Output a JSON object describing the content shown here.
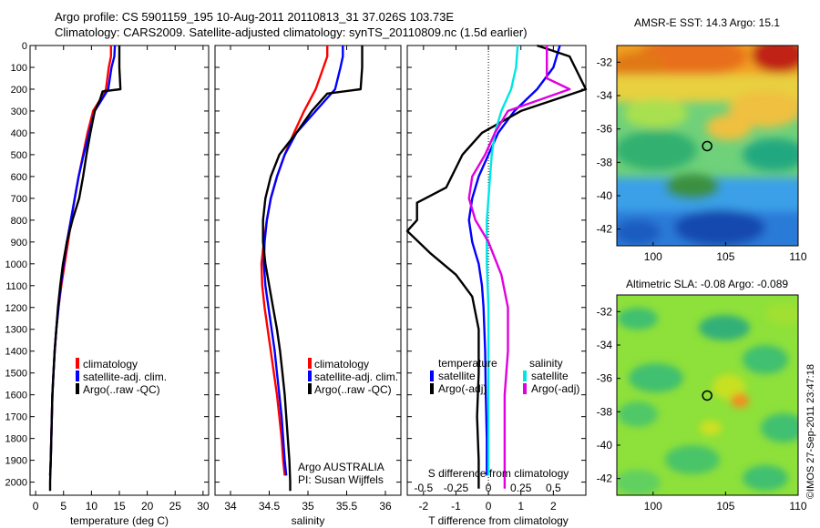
{
  "header": {
    "line1": "Argo profile: CS 5901159_195 10-Aug-2011 20110813_31 37.026S 103.73E",
    "line2": "Climatology: CARS2009. Satellite-adjusted climatology: synTS_20110809.nc (1.5d earlier)"
  },
  "credit": "©IMOS 27-Sep-2011 23:47:18",
  "colors": {
    "climatology": "#ff0000",
    "satellite": "#0000ff",
    "argo": "#000000",
    "cyan": "#00e5e5",
    "magenta": "#e000e0"
  },
  "chart_data": [
    {
      "type": "line",
      "panel": "temperature",
      "xlabel": "temperature (deg C)",
      "ylabel": "",
      "xlim": [
        -1,
        31
      ],
      "ylim": [
        2060,
        0
      ],
      "xticks": [
        0,
        5,
        10,
        15,
        20,
        25,
        30
      ],
      "yticks": [
        0,
        100,
        200,
        300,
        400,
        500,
        600,
        700,
        800,
        900,
        1000,
        1100,
        1200,
        1300,
        1400,
        1500,
        1600,
        1700,
        1800,
        1900,
        2000
      ],
      "legend": [
        "climatology",
        "satellite-adj. clim.",
        "Argo(..raw -QC)"
      ],
      "series": [
        {
          "name": "climatology",
          "color": "red",
          "points": [
            [
              13.5,
              0
            ],
            [
              13.5,
              50
            ],
            [
              13.1,
              100
            ],
            [
              12.6,
              200
            ],
            [
              11.5,
              250
            ],
            [
              10.3,
              300
            ],
            [
              9.3,
              400
            ],
            [
              8.5,
              500
            ],
            [
              7.7,
              600
            ],
            [
              7,
              700
            ],
            [
              6.4,
              800
            ],
            [
              5.8,
              900
            ],
            [
              5.2,
              1000
            ],
            [
              4.6,
              1100
            ],
            [
              4.1,
              1200
            ],
            [
              3.7,
              1300
            ],
            [
              3.4,
              1400
            ],
            [
              3.2,
              1500
            ],
            [
              3,
              1600
            ],
            [
              2.9,
              1700
            ],
            [
              2.8,
              1800
            ],
            [
              2.7,
              1900
            ],
            [
              2.6,
              1970
            ]
          ]
        },
        {
          "name": "satellite-adj. clim.",
          "color": "blue",
          "points": [
            [
              14.2,
              0
            ],
            [
              14.1,
              50
            ],
            [
              13.6,
              100
            ],
            [
              13,
              200
            ],
            [
              11.8,
              250
            ],
            [
              10.6,
              300
            ],
            [
              9.6,
              400
            ],
            [
              8.6,
              500
            ],
            [
              7.7,
              600
            ],
            [
              7,
              700
            ],
            [
              6.3,
              800
            ],
            [
              5.6,
              900
            ],
            [
              5,
              1000
            ],
            [
              4.5,
              1100
            ],
            [
              4.1,
              1200
            ],
            [
              3.7,
              1300
            ],
            [
              3.4,
              1400
            ],
            [
              3.2,
              1500
            ],
            [
              3,
              1600
            ],
            [
              2.9,
              1700
            ],
            [
              2.8,
              1800
            ],
            [
              2.7,
              1900
            ],
            [
              2.6,
              1970
            ]
          ]
        },
        {
          "name": "Argo(..raw -QC)",
          "color": "black",
          "points": [
            [
              15,
              0
            ],
            [
              15,
              100
            ],
            [
              15.2,
              200
            ],
            [
              12,
              210
            ],
            [
              11.5,
              250
            ],
            [
              10.6,
              300
            ],
            [
              9.8,
              400
            ],
            [
              9.1,
              500
            ],
            [
              8.5,
              600
            ],
            [
              7.8,
              700
            ],
            [
              6.6,
              800
            ],
            [
              5.6,
              900
            ],
            [
              4.9,
              1000
            ],
            [
              4.4,
              1100
            ],
            [
              4,
              1200
            ],
            [
              3.7,
              1300
            ],
            [
              3.4,
              1400
            ],
            [
              3.2,
              1500
            ],
            [
              3,
              1600
            ],
            [
              2.9,
              1700
            ],
            [
              2.8,
              1800
            ],
            [
              2.7,
              1900
            ],
            [
              2.6,
              2000
            ],
            [
              2.6,
              2040
            ]
          ]
        }
      ]
    },
    {
      "type": "line",
      "panel": "salinity",
      "xlabel": "salinity",
      "xlim": [
        33.8,
        36.2
      ],
      "ylim": [
        2060,
        0
      ],
      "xticks": [
        34,
        34.5,
        35,
        35.5,
        36
      ],
      "legend": [
        "climatology",
        "satellite-adj. clim.",
        "Argo(..raw -QC)"
      ],
      "annotation": [
        "Argo AUSTRALIA",
        "PI: Susan Wijffels"
      ],
      "series": [
        {
          "name": "climatology",
          "color": "red",
          "points": [
            [
              35.25,
              0
            ],
            [
              35.25,
              50
            ],
            [
              35.2,
              100
            ],
            [
              35.1,
              200
            ],
            [
              34.95,
              300
            ],
            [
              34.82,
              400
            ],
            [
              34.7,
              500
            ],
            [
              34.6,
              600
            ],
            [
              34.52,
              700
            ],
            [
              34.47,
              800
            ],
            [
              34.43,
              900
            ],
            [
              34.4,
              1000
            ],
            [
              34.41,
              1100
            ],
            [
              34.44,
              1200
            ],
            [
              34.48,
              1300
            ],
            [
              34.52,
              1400
            ],
            [
              34.56,
              1500
            ],
            [
              34.6,
              1600
            ],
            [
              34.63,
              1700
            ],
            [
              34.66,
              1800
            ],
            [
              34.68,
              1900
            ],
            [
              34.7,
              1970
            ]
          ]
        },
        {
          "name": "satellite-adj. clim.",
          "color": "blue",
          "points": [
            [
              35.45,
              0
            ],
            [
              35.45,
              50
            ],
            [
              35.42,
              100
            ],
            [
              35.35,
              200
            ],
            [
              35.1,
              300
            ],
            [
              34.85,
              400
            ],
            [
              34.7,
              500
            ],
            [
              34.6,
              600
            ],
            [
              34.52,
              700
            ],
            [
              34.47,
              800
            ],
            [
              34.44,
              900
            ],
            [
              34.43,
              1000
            ],
            [
              34.45,
              1100
            ],
            [
              34.49,
              1200
            ],
            [
              34.53,
              1300
            ],
            [
              34.57,
              1400
            ],
            [
              34.6,
              1500
            ],
            [
              34.63,
              1600
            ],
            [
              34.66,
              1700
            ],
            [
              34.68,
              1800
            ],
            [
              34.7,
              1900
            ],
            [
              34.72,
              1970
            ]
          ]
        },
        {
          "name": "Argo(..raw -QC)",
          "color": "black",
          "points": [
            [
              35.7,
              0
            ],
            [
              35.7,
              100
            ],
            [
              35.68,
              200
            ],
            [
              35.25,
              220
            ],
            [
              35.05,
              300
            ],
            [
              34.85,
              400
            ],
            [
              34.63,
              500
            ],
            [
              34.52,
              600
            ],
            [
              34.45,
              700
            ],
            [
              34.42,
              800
            ],
            [
              34.42,
              900
            ],
            [
              34.45,
              1000
            ],
            [
              34.5,
              1100
            ],
            [
              34.55,
              1200
            ],
            [
              34.6,
              1300
            ],
            [
              34.64,
              1400
            ],
            [
              34.67,
              1500
            ],
            [
              34.7,
              1600
            ],
            [
              34.72,
              1700
            ],
            [
              34.74,
              1800
            ],
            [
              34.76,
              1900
            ],
            [
              34.77,
              2000
            ],
            [
              34.77,
              2040
            ]
          ]
        }
      ]
    },
    {
      "type": "line",
      "panel": "difference",
      "xlabel": "T difference from climatology",
      "xlabel_top": "S difference from climatology",
      "xlim": [
        -2.5,
        3
      ],
      "ylim": [
        2060,
        0
      ],
      "xticks": [
        -2,
        -1,
        0,
        1,
        2
      ],
      "xtick_labels": [
        "-2",
        "-1",
        "0",
        "1",
        "2"
      ],
      "s_ticks": [
        -0.5,
        -0.25,
        0,
        0.25,
        0.5
      ],
      "s_tick_labels": [
        "-0.5",
        "-0.25",
        "0",
        "0.25",
        "0.5"
      ],
      "legend_headers": [
        "temperature",
        "salinity"
      ],
      "legend": [
        "satellite",
        "Argo(-adj)",
        "satellite",
        "Argo(-adj)"
      ],
      "series": [
        {
          "name": "T satellite",
          "color": "blue",
          "points": [
            [
              2.2,
              0
            ],
            [
              2,
              100
            ],
            [
              1.5,
              200
            ],
            [
              0.8,
              300
            ],
            [
              0.3,
              400
            ],
            [
              0,
              500
            ],
            [
              -0.3,
              600
            ],
            [
              -0.5,
              700
            ],
            [
              -0.6,
              800
            ],
            [
              -0.5,
              900
            ],
            [
              -0.4,
              950
            ],
            [
              -0.3,
              1000
            ],
            [
              -0.2,
              1100
            ],
            [
              -0.15,
              1200
            ],
            [
              -0.1,
              1400
            ],
            [
              -0.08,
              1600
            ],
            [
              -0.05,
              1800
            ],
            [
              -0.05,
              1970
            ]
          ]
        },
        {
          "name": "T Argo(-adj)",
          "color": "black",
          "points": [
            [
              1.5,
              0
            ],
            [
              2.5,
              50
            ],
            [
              3,
              200
            ],
            [
              1,
              300
            ],
            [
              -0.2,
              400
            ],
            [
              -0.8,
              500
            ],
            [
              -1.3,
              650
            ],
            [
              -2.2,
              720
            ],
            [
              -2.2,
              800
            ],
            [
              -2.5,
              850
            ],
            [
              -1.8,
              950
            ],
            [
              -1,
              1050
            ],
            [
              -0.5,
              1150
            ],
            [
              -0.3,
              1300
            ],
            [
              -0.3,
              1500
            ],
            [
              -0.35,
              1700
            ],
            [
              -0.3,
              1900
            ],
            [
              -0.3,
              2030
            ]
          ]
        },
        {
          "name": "S satellite",
          "color": "cyan",
          "points": [
            [
              0.9,
              0
            ],
            [
              0.85,
              100
            ],
            [
              0.7,
              200
            ],
            [
              0.4,
              300
            ],
            [
              0.2,
              400
            ],
            [
              0.1,
              500
            ],
            [
              0.05,
              600
            ],
            [
              0,
              700
            ],
            [
              -0.05,
              800
            ],
            [
              -0.05,
              1000
            ],
            [
              0,
              1200
            ],
            [
              0,
              1500
            ],
            [
              0,
              1800
            ],
            [
              0,
              1970
            ]
          ]
        },
        {
          "name": "S Argo(-adj)",
          "color": "magenta",
          "points": [
            [
              1.8,
              0
            ],
            [
              1.8,
              150
            ],
            [
              2.5,
              200
            ],
            [
              0.6,
              300
            ],
            [
              0.2,
              400
            ],
            [
              -0.1,
              500
            ],
            [
              -0.5,
              600
            ],
            [
              -0.6,
              700
            ],
            [
              -0.4,
              800
            ],
            [
              0,
              900
            ],
            [
              0.4,
              1050
            ],
            [
              0.6,
              1200
            ],
            [
              0.6,
              1400
            ],
            [
              0.5,
              1600
            ],
            [
              0.5,
              1800
            ],
            [
              0.5,
              2000
            ],
            [
              0.5,
              2030
            ]
          ]
        }
      ]
    },
    {
      "type": "heatmap",
      "panel": "sst_map",
      "title": "AMSR-E SST: 14.3 Argo: 15.1",
      "xlim": [
        97.5,
        110
      ],
      "ylim": [
        -43,
        -31
      ],
      "xticks": [
        100,
        105,
        110
      ],
      "yticks": [
        -32,
        -34,
        -36,
        -38,
        -40,
        -42
      ],
      "marker": [
        103.73,
        -37.026
      ]
    },
    {
      "type": "heatmap",
      "panel": "sla_map",
      "title": "Altimetric SLA: -0.08 Argo: -0.089",
      "xlim": [
        97.5,
        110
      ],
      "ylim": [
        -43,
        -31
      ],
      "xticks": [
        100,
        105,
        110
      ],
      "yticks": [
        -32,
        -34,
        -36,
        -38,
        -40,
        -42
      ],
      "marker": [
        103.73,
        -37.026
      ]
    }
  ]
}
